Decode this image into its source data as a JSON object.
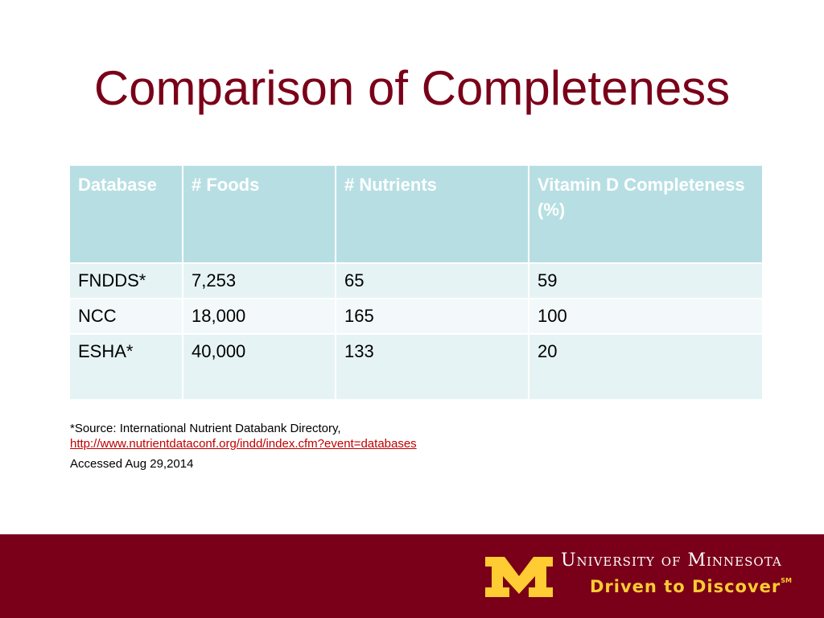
{
  "slide": {
    "title": "Comparison of Completeness"
  },
  "table": {
    "headers": [
      "Database",
      "# Foods",
      "# Nutrients",
      "Vitamin D Completeness (%)"
    ],
    "rows": [
      [
        "FNDDS*",
        "7,253",
        "65",
        "59"
      ],
      [
        "NCC",
        "18,000",
        "165",
        "100"
      ],
      [
        "ESHA*",
        "40,000",
        "133",
        "20"
      ]
    ]
  },
  "source": {
    "line1": "*Source:  International Nutrient Databank Directory,",
    "link": "http://www.nutrientdataconf.org/indd/index.cfm?event=databases",
    "accessed": "Accessed Aug 29,2014"
  },
  "footer": {
    "university": "University of Minnesota",
    "tagline": "Driven to Discover",
    "tagline_mark": "SM",
    "colors": {
      "maroon": "#7a0019",
      "gold": "#ffcc33"
    },
    "logo_icon": "block-m-logo-icon"
  }
}
